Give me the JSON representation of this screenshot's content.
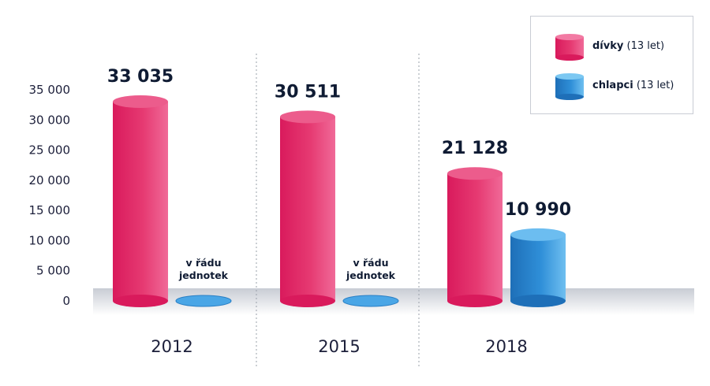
{
  "chart_data": {
    "type": "bar",
    "categories": [
      "2012",
      "2015",
      "2018"
    ],
    "series": [
      {
        "name": "dívky",
        "name_suffix": "(13 let)",
        "values": [
          33035,
          30511,
          21128
        ],
        "color": "#e0336b"
      },
      {
        "name": "chlapci",
        "name_suffix": "(13 let)",
        "values": [
          0,
          0,
          10990
        ],
        "color": "#2a8fd6"
      }
    ],
    "value_labels": [
      [
        "33 035",
        "30 511",
        "21 128"
      ],
      [
        "",
        "",
        "10 990"
      ]
    ],
    "notes": [
      {
        "category": "2012",
        "series": "chlapci",
        "lines": [
          "v řádu",
          "jednotek"
        ]
      },
      {
        "category": "2015",
        "series": "chlapci",
        "lines": [
          "v řádu",
          "jednotek"
        ]
      }
    ],
    "yticks": [
      0,
      5000,
      10000,
      15000,
      20000,
      25000,
      30000,
      35000
    ],
    "ytick_labels": [
      "0",
      "5 000",
      "10 000",
      "15 000",
      "20 000",
      "25 000",
      "30 000",
      "35 000"
    ],
    "ylim": [
      0,
      35000
    ],
    "legend_position": "top-right",
    "grid": false
  }
}
